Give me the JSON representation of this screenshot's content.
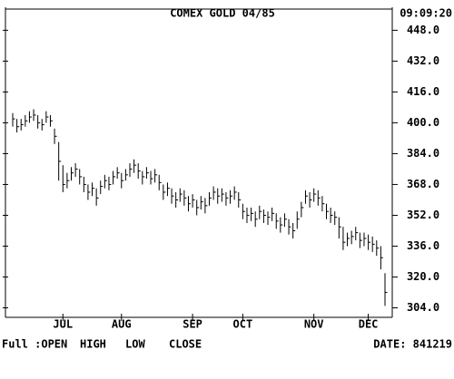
{
  "chart_data": {
    "type": "hlc",
    "title": "COMEX GOLD 04/85",
    "time": "09:09:20",
    "footer_mode": "Full :OPEN",
    "footer_fields": [
      "HIGH",
      "LOW",
      "CLOSE"
    ],
    "footer_date": "DATE: 841219",
    "categories": [
      null,
      null,
      null,
      null,
      null,
      null,
      null,
      null,
      null,
      null,
      null,
      null,
      "JUL",
      null,
      null,
      null,
      null,
      null,
      null,
      null,
      null,
      null,
      null,
      null,
      null,
      null,
      "AUG",
      null,
      null,
      null,
      null,
      null,
      null,
      null,
      null,
      null,
      null,
      null,
      null,
      null,
      null,
      null,
      null,
      "SEP",
      null,
      null,
      null,
      null,
      null,
      null,
      null,
      null,
      null,
      null,
      null,
      "OCT",
      null,
      null,
      null,
      null,
      null,
      null,
      null,
      null,
      null,
      null,
      null,
      null,
      null,
      null,
      null,
      null,
      "NOV",
      null,
      null,
      null,
      null,
      null,
      null,
      null,
      null,
      null,
      null,
      null,
      null,
      "DEC",
      null,
      null,
      null,
      null
    ],
    "high": [
      405,
      402,
      402,
      404,
      406,
      407,
      404,
      402,
      406,
      404,
      397,
      390,
      378,
      374,
      377,
      379,
      376,
      372,
      368,
      369,
      366,
      370,
      373,
      372,
      375,
      377,
      374,
      376,
      379,
      381,
      379,
      375,
      377,
      375,
      376,
      373,
      368,
      369,
      366,
      364,
      366,
      365,
      362,
      363,
      360,
      362,
      361,
      364,
      367,
      366,
      366,
      364,
      365,
      367,
      364,
      358,
      356,
      356,
      354,
      357,
      355,
      354,
      356,
      353,
      351,
      353,
      350,
      348,
      354,
      359,
      365,
      364,
      366,
      365,
      362,
      358,
      356,
      354,
      351,
      346,
      343,
      344,
      346,
      343,
      343,
      342,
      341,
      339,
      336,
      322
    ],
    "low": [
      398,
      395,
      396,
      398,
      400,
      401,
      397,
      396,
      400,
      398,
      389,
      370,
      364,
      366,
      370,
      372,
      368,
      364,
      360,
      362,
      357,
      363,
      366,
      365,
      368,
      371,
      366,
      370,
      372,
      374,
      371,
      368,
      371,
      368,
      369,
      365,
      360,
      362,
      358,
      356,
      359,
      357,
      354,
      356,
      352,
      355,
      353,
      357,
      360,
      358,
      359,
      357,
      358,
      360,
      356,
      350,
      348,
      349,
      346,
      350,
      348,
      347,
      349,
      345,
      343,
      346,
      342,
      340,
      345,
      351,
      358,
      356,
      359,
      357,
      354,
      350,
      348,
      347,
      340,
      334,
      336,
      337,
      339,
      335,
      336,
      334,
      333,
      331,
      324,
      305
    ],
    "close": [
      402,
      398,
      399,
      401,
      403,
      404,
      400,
      399,
      403,
      401,
      393,
      380,
      368,
      370,
      374,
      376,
      372,
      368,
      364,
      366,
      361,
      367,
      370,
      368,
      372,
      374,
      370,
      373,
      376,
      378,
      375,
      372,
      374,
      371,
      373,
      369,
      364,
      366,
      362,
      360,
      363,
      361,
      358,
      360,
      356,
      359,
      357,
      361,
      364,
      362,
      363,
      361,
      362,
      364,
      360,
      354,
      352,
      353,
      350,
      354,
      352,
      351,
      353,
      349,
      347,
      350,
      346,
      344,
      350,
      356,
      362,
      360,
      363,
      361,
      358,
      354,
      352,
      351,
      346,
      338,
      340,
      341,
      343,
      339,
      340,
      338,
      337,
      335,
      330,
      312
    ],
    "color": "#000000",
    "ylim": [
      300,
      459
    ],
    "yticks": [
      {
        "value": 304,
        "label": "304.0"
      },
      {
        "value": 320,
        "label": "320.0"
      },
      {
        "value": 336,
        "label": "336.0"
      },
      {
        "value": 352,
        "label": "352.0"
      },
      {
        "value": 368,
        "label": "368.0"
      },
      {
        "value": 384,
        "label": "384.0"
      },
      {
        "value": 400,
        "label": "400.0"
      },
      {
        "value": 416,
        "label": "416.0"
      },
      {
        "value": 432,
        "label": "432.0"
      },
      {
        "value": 448,
        "label": "448.0"
      }
    ]
  }
}
